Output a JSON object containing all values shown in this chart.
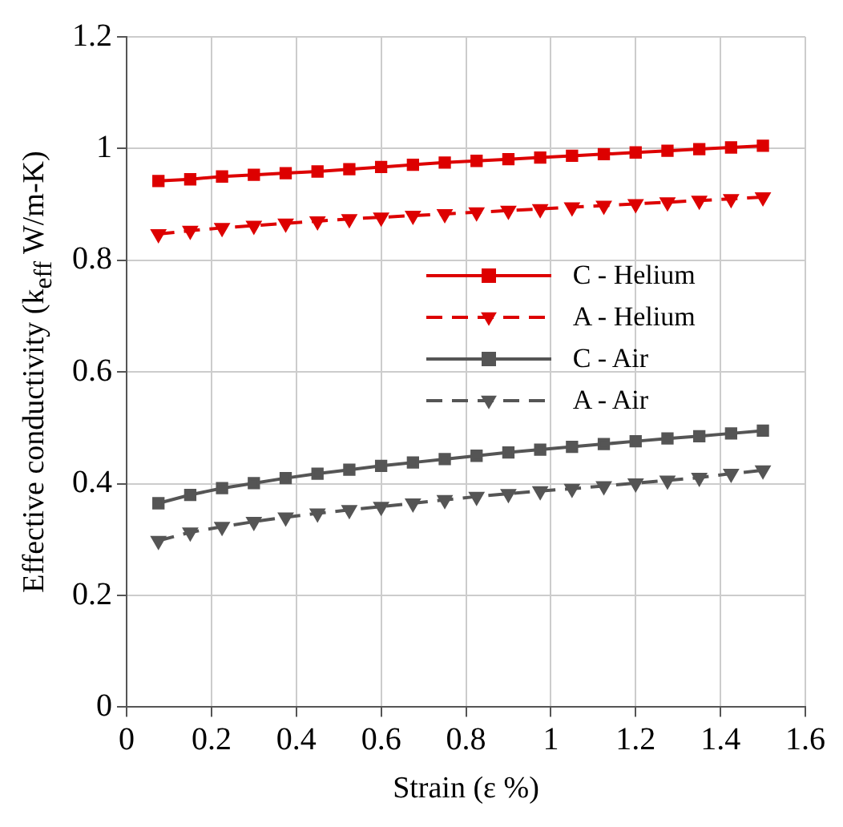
{
  "chart_data": {
    "type": "line",
    "xlabel": "Strain (ε %)",
    "ylabel": "Effective conductivity (k$_{eff}$ W/m-K)",
    "x": [
      0.075,
      0.15,
      0.225,
      0.3,
      0.375,
      0.45,
      0.525,
      0.6,
      0.675,
      0.75,
      0.825,
      0.9,
      0.975,
      1.05,
      1.125,
      1.2,
      1.275,
      1.35,
      1.425,
      1.5
    ],
    "series": [
      {
        "name": "C - Helium",
        "color": "#dd0000",
        "marker": "square",
        "line_style": "solid",
        "values": [
          0.942,
          0.945,
          0.95,
          0.953,
          0.956,
          0.959,
          0.963,
          0.967,
          0.971,
          0.975,
          0.978,
          0.981,
          0.984,
          0.987,
          0.99,
          0.993,
          0.996,
          0.999,
          1.002,
          1.005
        ]
      },
      {
        "name": "A - Helium",
        "color": "#dd0000",
        "marker": "triangle",
        "line_style": "dashed",
        "values": [
          0.847,
          0.853,
          0.858,
          0.862,
          0.866,
          0.87,
          0.874,
          0.877,
          0.88,
          0.883,
          0.886,
          0.889,
          0.892,
          0.895,
          0.898,
          0.901,
          0.904,
          0.907,
          0.91,
          0.913
        ]
      },
      {
        "name": "C - Air",
        "color": "#555555",
        "marker": "square",
        "line_style": "solid",
        "values": [
          0.365,
          0.38,
          0.392,
          0.401,
          0.41,
          0.418,
          0.425,
          0.432,
          0.438,
          0.444,
          0.45,
          0.456,
          0.461,
          0.466,
          0.471,
          0.476,
          0.481,
          0.485,
          0.49,
          0.495
        ]
      },
      {
        "name": "A - Air",
        "color": "#555555",
        "marker": "triangle",
        "line_style": "dashed",
        "values": [
          0.298,
          0.313,
          0.323,
          0.332,
          0.34,
          0.347,
          0.353,
          0.359,
          0.365,
          0.371,
          0.377,
          0.382,
          0.387,
          0.391,
          0.396,
          0.401,
          0.406,
          0.411,
          0.418,
          0.424
        ]
      }
    ],
    "xlim": [
      0,
      1.6
    ],
    "xticks": [
      0,
      0.2,
      0.4,
      0.6,
      0.8,
      1,
      1.2,
      1.4,
      1.6
    ],
    "ylim": [
      0,
      1.2
    ],
    "yticks": [
      0,
      0.2,
      0.4,
      0.6,
      0.8,
      1,
      1.2
    ],
    "grid": true,
    "legend": "right"
  }
}
